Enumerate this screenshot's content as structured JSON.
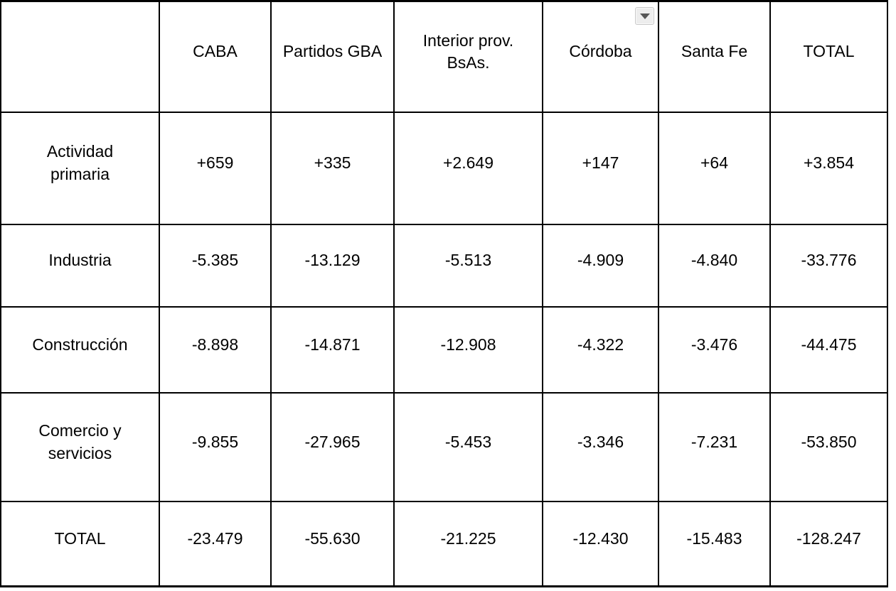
{
  "colors": {
    "background": "#ffffff",
    "border": "#000000",
    "text": "#000000",
    "dropdown_fill": "#ededed",
    "dropdown_border": "#c8c8c8",
    "dropdown_arrow": "#565656"
  },
  "table": {
    "column_headers": [
      "",
      "CABA",
      "Partidos GBA",
      "Interior prov.\nBsAs.",
      "Córdoba",
      "Santa Fe",
      "TOTAL"
    ],
    "filter_dropdown_column": "Córdoba",
    "rows": [
      {
        "label": "Actividad\nprimaria",
        "values": [
          "+659",
          "+335",
          "+2.649",
          "+147",
          "+64",
          "+3.854"
        ]
      },
      {
        "label": "Industria",
        "values": [
          "-5.385",
          "-13.129",
          "-5.513",
          "-4.909",
          "-4.840",
          "-33.776"
        ]
      },
      {
        "label": "Construcción",
        "values": [
          "-8.898",
          "-14.871",
          "-12.908",
          "-4.322",
          "-3.476",
          "-44.475"
        ]
      },
      {
        "label": "Comercio y\nservicios",
        "values": [
          "-9.855",
          "-27.965",
          "-5.453",
          "-3.346",
          "-7.231",
          "-53.850"
        ]
      },
      {
        "label": "TOTAL",
        "values": [
          "-23.479",
          "-55.630",
          "-21.225",
          "-12.430",
          "-15.483",
          "-128.247"
        ]
      }
    ]
  }
}
